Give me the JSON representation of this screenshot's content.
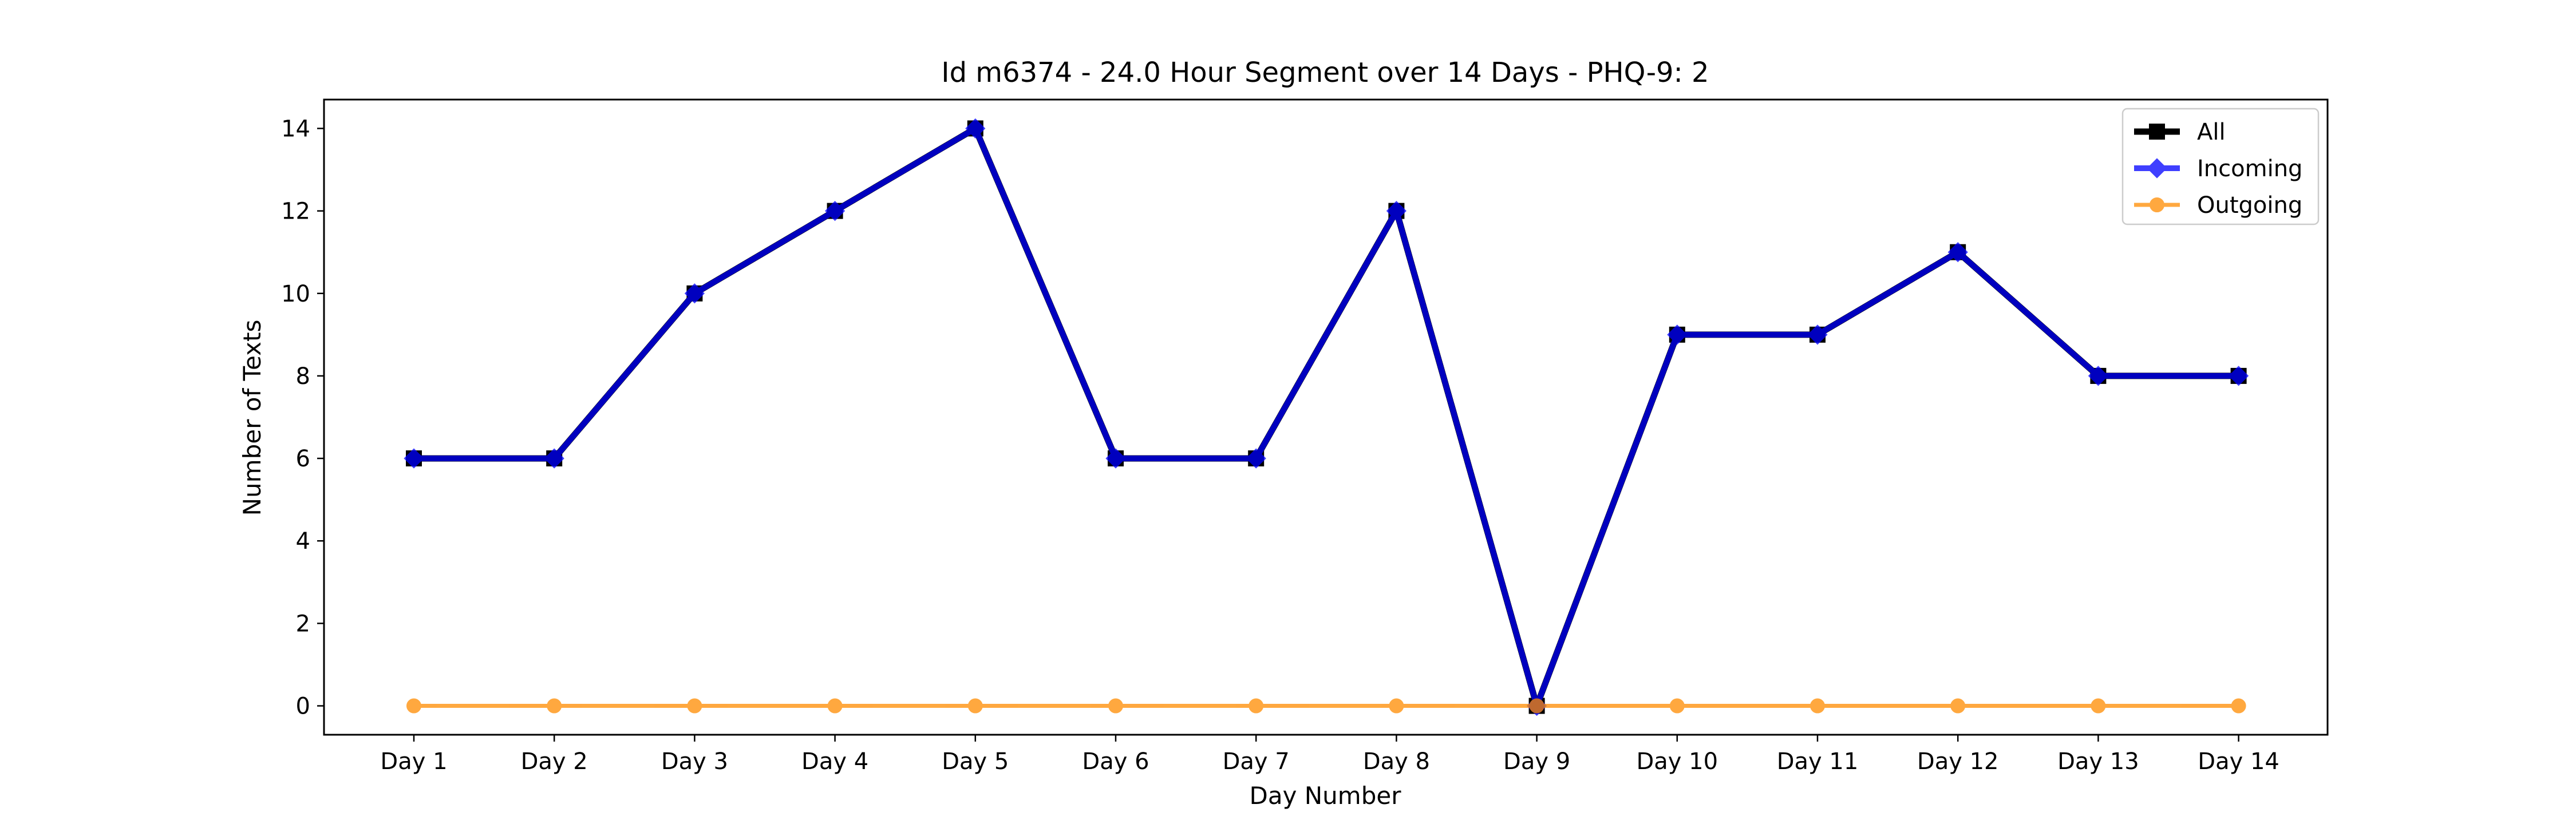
{
  "chart_data": {
    "type": "line",
    "title": "Id m6374 - 24.0 Hour Segment over 14 Days - PHQ-9: 2",
    "xlabel": "Day Number",
    "ylabel": "Number of Texts",
    "categories": [
      "Day 1",
      "Day 2",
      "Day 3",
      "Day 4",
      "Day 5",
      "Day 6",
      "Day 7",
      "Day 8",
      "Day 9",
      "Day 10",
      "Day 11",
      "Day 12",
      "Day 13",
      "Day 14"
    ],
    "ylim": [
      -0.7,
      14.7
    ],
    "yticks": [
      0,
      2,
      4,
      6,
      8,
      10,
      12,
      14
    ],
    "grid": false,
    "legend_position": "top-right",
    "series": [
      {
        "name": "All",
        "values": [
          6,
          6,
          10,
          12,
          14,
          6,
          6,
          12,
          0,
          9,
          9,
          11,
          8,
          8
        ],
        "color": "#000000",
        "marker": "square"
      },
      {
        "name": "Incoming",
        "values": [
          6,
          6,
          10,
          12,
          14,
          6,
          6,
          12,
          0,
          9,
          9,
          11,
          8,
          8
        ],
        "color": "#0000ff",
        "marker": "diamond"
      },
      {
        "name": "Outgoing",
        "values": [
          0,
          0,
          0,
          0,
          0,
          0,
          0,
          0,
          0,
          0,
          0,
          0,
          0,
          0
        ],
        "color": "#ff8c00",
        "marker": "circle"
      }
    ]
  }
}
